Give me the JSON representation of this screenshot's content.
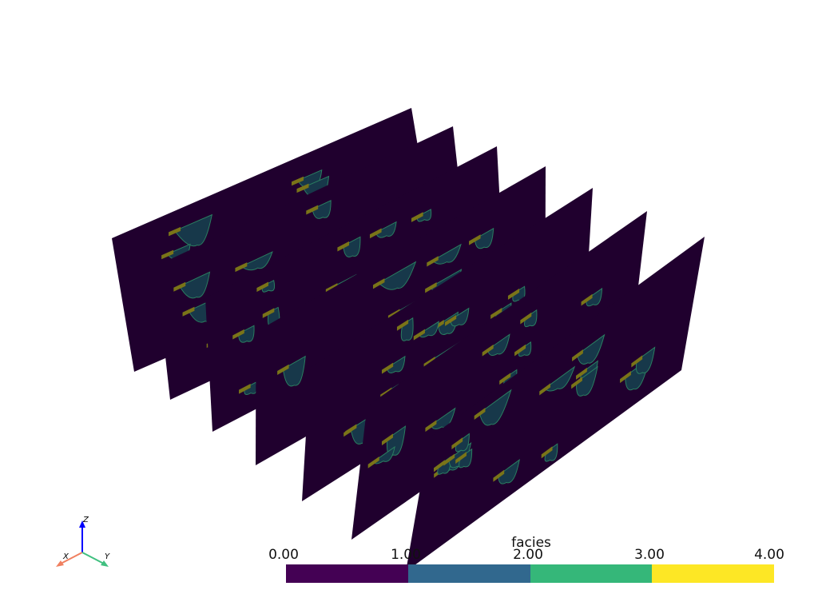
{
  "scene": {
    "slice_count": 7,
    "background_color": "#ffffff"
  },
  "colorbar": {
    "title": "facies",
    "ticks": [
      "0.00",
      "1.00",
      "2.00",
      "3.00",
      "4.00"
    ],
    "range": [
      0,
      4
    ],
    "colors": [
      "#440154",
      "#31688e",
      "#35b779",
      "#fde725"
    ]
  },
  "axes_widget": {
    "x_label": "X",
    "y_label": "Y",
    "z_label": "Z",
    "x_color": "#f08060",
    "y_color": "#40c080",
    "z_color": "#0000ff"
  }
}
